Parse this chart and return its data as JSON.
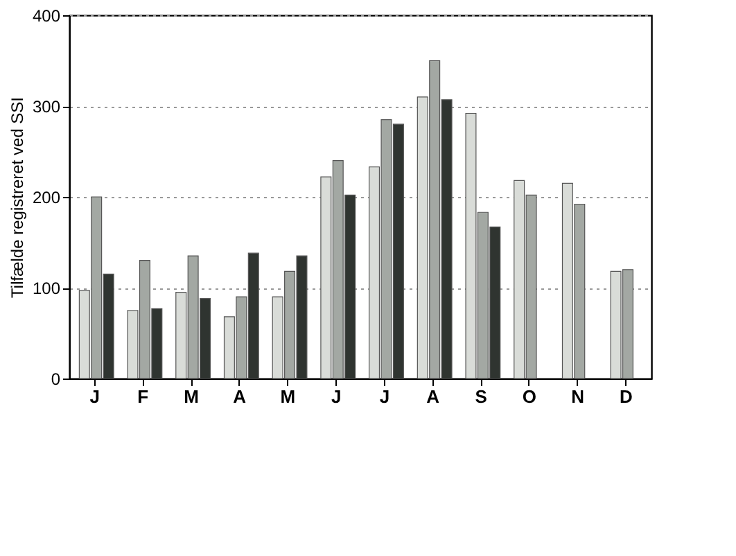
{
  "chart_data": {
    "type": "bar",
    "ylabel": "Tilfælde registreret ved SSI",
    "categories": [
      "J",
      "F",
      "M",
      "A",
      "M",
      "J",
      "J",
      "A",
      "S",
      "O",
      "N",
      "D"
    ],
    "series": [
      {
        "color": "#d9dcd8",
        "values": [
          97,
          75,
          95,
          68,
          90,
          222,
          233,
          310,
          292,
          218,
          215,
          118
        ]
      },
      {
        "color": "#a3a8a3",
        "values": [
          200,
          130,
          135,
          90,
          118,
          240,
          285,
          350,
          183,
          202,
          192,
          120
        ]
      },
      {
        "color": "#2f3430",
        "values": [
          115,
          77,
          88,
          138,
          135,
          202,
          280,
          307,
          167,
          null,
          null,
          null
        ]
      }
    ],
    "ylim": [
      0,
      400
    ],
    "yticks": [
      0,
      100,
      200,
      300,
      400
    ],
    "grid": "y",
    "legend": false
  }
}
